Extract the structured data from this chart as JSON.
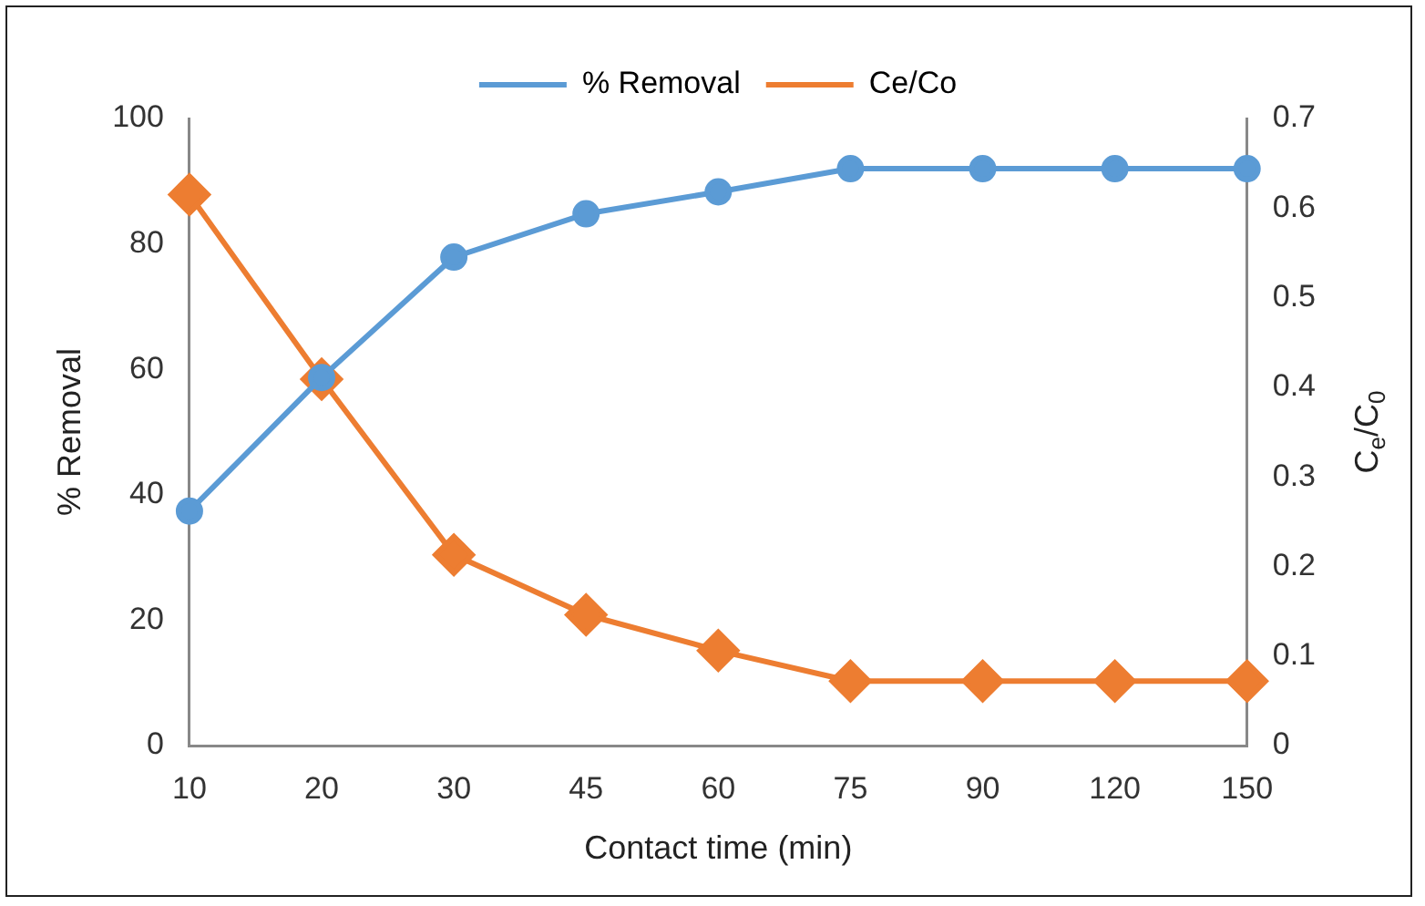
{
  "chart_data": {
    "type": "line",
    "xlabel": "Contact time (min)",
    "ylabel": "% Removal",
    "y2label": "C$_{e}$/C$_{0}$",
    "categories": [
      "10",
      "20",
      "30",
      "45",
      "60",
      "75",
      "90",
      "120",
      "150"
    ],
    "series": [
      {
        "name": "% Removal",
        "color": "#5b9bd5",
        "marker": "circle",
        "values": [
          37.4,
          58.7,
          77.9,
          84.8,
          88.3,
          92,
          92,
          92,
          92
        ]
      },
      {
        "name": "Ce/Co",
        "color": "#ed7d31",
        "marker": "diamond",
        "axis": "y2",
        "values": [
          0.615,
          0.409,
          0.213,
          0.146,
          0.106,
          0.072,
          0.072,
          0.072,
          0.072
        ]
      }
    ],
    "ylim": [
      0,
      100
    ],
    "yticks": [
      0,
      20,
      40,
      60,
      80,
      100
    ],
    "y2lim": [
      0,
      0.7
    ],
    "y2ticks": [
      0,
      0.1,
      0.2,
      0.3,
      0.4,
      0.5,
      0.6,
      0.7
    ],
    "legend": "top",
    "grid": false,
    "line_style": "solid"
  }
}
